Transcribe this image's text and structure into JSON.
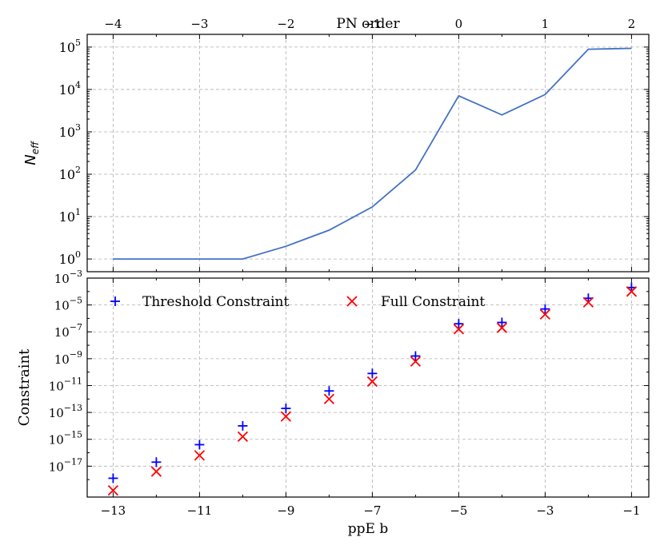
{
  "chart_data": [
    {
      "type": "line",
      "title": "",
      "xlabel_top": "PN order",
      "ylabel": "N",
      "ylabel_sub": "eff",
      "ylim_log10": [
        -0.3,
        5.3
      ],
      "x": [
        -13,
        -12,
        -11,
        -10,
        -9,
        -8,
        -7,
        -6,
        -5,
        -4,
        -3,
        -2,
        -1
      ],
      "series": [
        {
          "values_log10": [
            0,
            0,
            0,
            0,
            0.3,
            0.68,
            1.23,
            2.1,
            3.85,
            3.4,
            3.88,
            4.95,
            4.97
          ],
          "color": "#4472c4"
        }
      ],
      "top_ticks": [
        {
          "x": -13,
          "label": "−4"
        },
        {
          "x": -11,
          "label": "−3"
        },
        {
          "x": -9,
          "label": "−2"
        },
        {
          "x": -7,
          "label": "−1"
        },
        {
          "x": -5,
          "label": "0"
        },
        {
          "x": -3,
          "label": "1"
        },
        {
          "x": -1,
          "label": "2"
        }
      ],
      "y_ticks": [
        {
          "exp": 0,
          "base": "10",
          "sup": "0"
        },
        {
          "exp": 1,
          "base": "10",
          "sup": "1"
        },
        {
          "exp": 2,
          "base": "10",
          "sup": "2"
        },
        {
          "exp": 3,
          "base": "10",
          "sup": "3"
        },
        {
          "exp": 4,
          "base": "10",
          "sup": "4"
        },
        {
          "exp": 5,
          "base": "10",
          "sup": "5"
        }
      ],
      "grid": true
    },
    {
      "type": "scatter",
      "title": "",
      "xlabel": "ppE b",
      "ylabel": "Constraint",
      "xlim": [
        -13.6,
        -0.6
      ],
      "ylim_log10": [
        -19.3,
        -3.0
      ],
      "legend_position": "top",
      "series": [
        {
          "name": "Threshold Constraint",
          "marker": "+",
          "color": "#0000ff",
          "x": [
            -13,
            -12,
            -11,
            -10,
            -9,
            -8,
            -7,
            -6,
            -5,
            -4,
            -3,
            -2,
            -1
          ],
          "log10_values": [
            -17.9,
            -16.7,
            -15.4,
            -14.0,
            -12.7,
            -11.4,
            -10.1,
            -8.8,
            -6.4,
            -6.3,
            -5.3,
            -4.5,
            -3.7
          ]
        },
        {
          "name": "Full Constraint",
          "marker": "x",
          "color": "#ff0000",
          "x": [
            -13,
            -12,
            -11,
            -10,
            -9,
            -8,
            -7,
            -6,
            -5,
            -4,
            -3,
            -2,
            -1
          ],
          "log10_values": [
            -18.8,
            -17.4,
            -16.2,
            -14.8,
            -13.3,
            -12.0,
            -10.7,
            -9.2,
            -6.8,
            -6.7,
            -5.7,
            -4.8,
            -4.0
          ]
        }
      ],
      "x_ticks": [
        {
          "x": -13,
          "label": "−13"
        },
        {
          "x": -11,
          "label": "−11"
        },
        {
          "x": -9,
          "label": "−9"
        },
        {
          "x": -7,
          "label": "−7"
        },
        {
          "x": -5,
          "label": "−5"
        },
        {
          "x": -3,
          "label": "−3"
        },
        {
          "x": -1,
          "label": "−1"
        }
      ],
      "y_ticks": [
        {
          "exp": -17,
          "base": "10",
          "sup": "−17"
        },
        {
          "exp": -15,
          "base": "10",
          "sup": "−15"
        },
        {
          "exp": -13,
          "base": "10",
          "sup": "−13"
        },
        {
          "exp": -11,
          "base": "10",
          "sup": "−11"
        },
        {
          "exp": -9,
          "base": "10",
          "sup": "−9"
        },
        {
          "exp": -7,
          "base": "10",
          "sup": "−7"
        },
        {
          "exp": -5,
          "base": "10",
          "sup": "−5"
        },
        {
          "exp": -3,
          "base": "10",
          "sup": "−3"
        }
      ],
      "grid": true
    }
  ]
}
